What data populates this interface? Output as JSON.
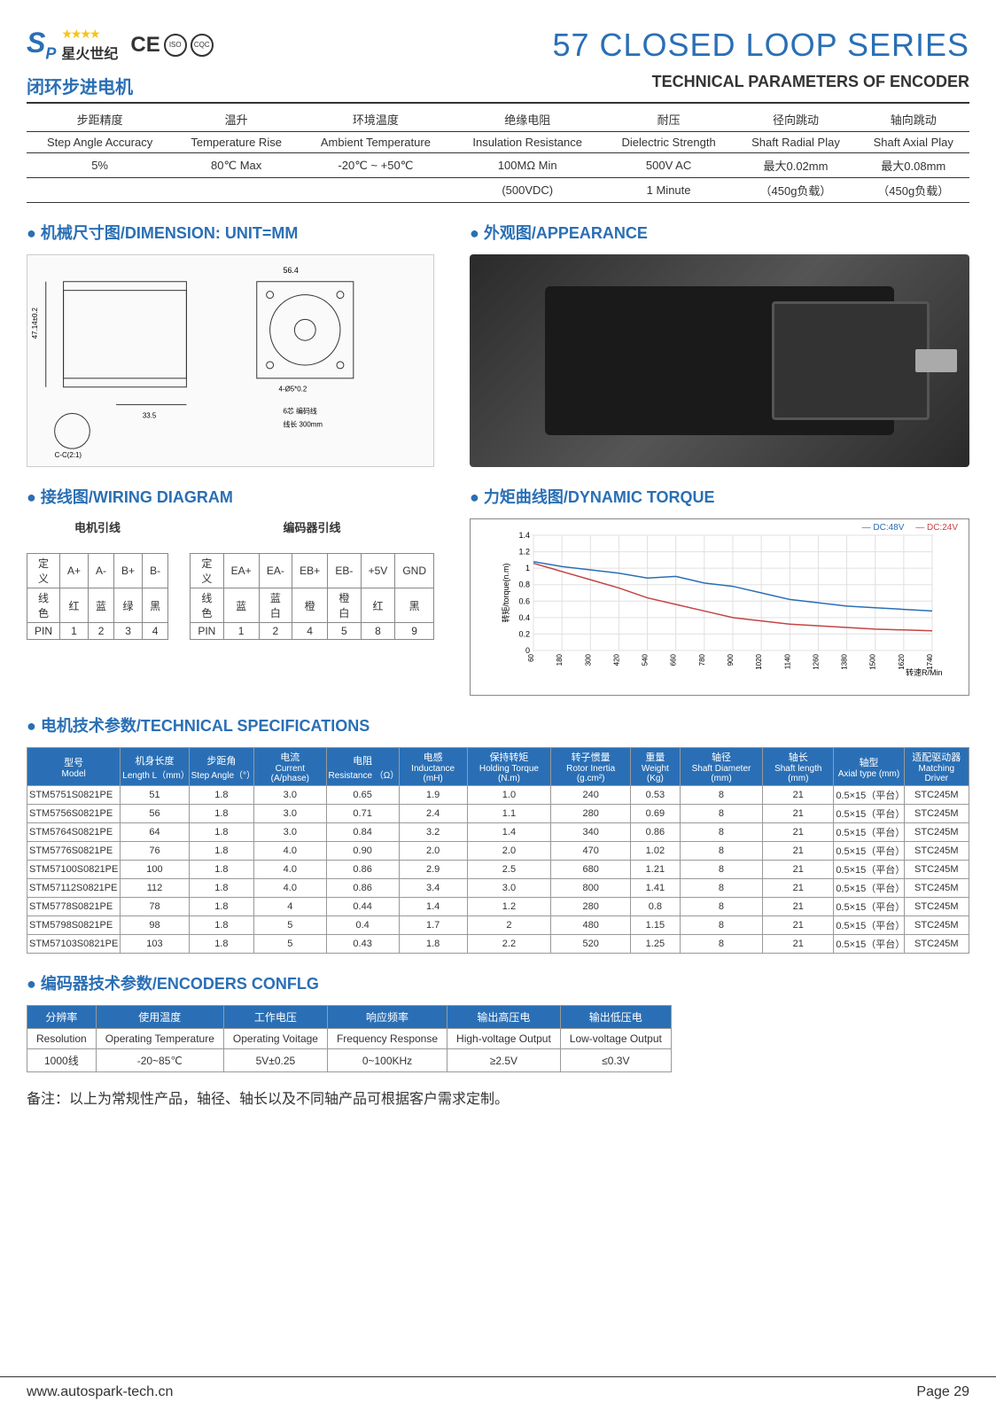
{
  "header": {
    "logo_sp": "S",
    "logo_p": "P",
    "logo_cn": "星火世纪",
    "main_title": "57 CLOSED LOOP SERIES"
  },
  "subheader": {
    "cn": "闭环步进电机",
    "en": "TECHNICAL PARAMETERS OF ENCODER"
  },
  "params": {
    "cols_cn": [
      "步距精度",
      "温升",
      "环境温度",
      "绝缘电阻",
      "耐压",
      "径向跳动",
      "轴向跳动"
    ],
    "cols_en": [
      "Step Angle Accuracy",
      "Temperature Rise",
      "Ambient Temperature",
      "Insulation Resistance",
      "Dielectric Strength",
      "Shaft Radial Play",
      "Shaft Axial Play"
    ],
    "row1": [
      "5%",
      "80℃ Max",
      "-20℃ ~ +50℃",
      "100MΩ Min",
      "500V AC",
      "最大0.02mm",
      "最大0.08mm"
    ],
    "row2": [
      "",
      "",
      "",
      "(500VDC)",
      "1 Minute",
      "（450g负载）",
      "（450g负载）"
    ]
  },
  "sections": {
    "dimension": "机械尺寸图/DIMENSION: UNIT=MM",
    "appearance": "外观图/APPEARANCE",
    "wiring": "接线图/WIRING DIAGRAM",
    "torque": "力矩曲线图/DYNAMIC TORQUE",
    "tech": "电机技术参数/TECHNICAL SPECIFICATIONS",
    "encoder": "编码器技术参数/ENCODERS CONFLG"
  },
  "wiring": {
    "motor_label": "电机引线",
    "encoder_label": "编码器引线",
    "motor_table": {
      "r0": [
        "定义",
        "A+",
        "A-",
        "B+",
        "B-"
      ],
      "r1": [
        "线色",
        "红",
        "蓝",
        "绿",
        "黑"
      ],
      "r2": [
        "PIN",
        "1",
        "2",
        "3",
        "4"
      ]
    },
    "encoder_table": {
      "r0": [
        "定义",
        "EA+",
        "EA-",
        "EB+",
        "EB-",
        "+5V",
        "GND"
      ],
      "r1": [
        "线色",
        "蓝",
        "蓝白",
        "橙",
        "橙白",
        "红",
        "黑"
      ],
      "r2": [
        "PIN",
        "1",
        "2",
        "4",
        "5",
        "8",
        "9"
      ]
    }
  },
  "torque_chart": {
    "legend": {
      "blue": "— DC:48V",
      "red": "— DC:24V"
    },
    "ylim": [
      0,
      1.4
    ],
    "yticks": [
      0,
      0.2,
      0.4,
      0.6,
      0.8,
      1.0,
      1.2,
      1.4
    ],
    "xticks": [
      60,
      180,
      300,
      420,
      540,
      660,
      780,
      900,
      1020,
      1140,
      1260,
      1380,
      1500,
      1620,
      1740
    ],
    "xlabel": "转速R/Min",
    "ylabel": "转矩/torque(n.m)",
    "series_blue": [
      [
        60,
        1.08
      ],
      [
        180,
        1.02
      ],
      [
        300,
        0.98
      ],
      [
        420,
        0.94
      ],
      [
        540,
        0.88
      ],
      [
        660,
        0.9
      ],
      [
        780,
        0.82
      ],
      [
        900,
        0.78
      ],
      [
        1020,
        0.7
      ],
      [
        1140,
        0.62
      ],
      [
        1260,
        0.58
      ],
      [
        1380,
        0.54
      ],
      [
        1500,
        0.52
      ],
      [
        1620,
        0.5
      ],
      [
        1740,
        0.48
      ]
    ],
    "series_red": [
      [
        60,
        1.06
      ],
      [
        180,
        0.96
      ],
      [
        300,
        0.86
      ],
      [
        420,
        0.76
      ],
      [
        540,
        0.64
      ],
      [
        660,
        0.56
      ],
      [
        780,
        0.48
      ],
      [
        900,
        0.4
      ],
      [
        1020,
        0.36
      ],
      [
        1140,
        0.32
      ],
      [
        1260,
        0.3
      ],
      [
        1380,
        0.28
      ],
      [
        1500,
        0.26
      ],
      [
        1620,
        0.25
      ],
      [
        1740,
        0.24
      ]
    ],
    "colors": {
      "blue": "#2a6fb5",
      "red": "#c44444",
      "grid": "#e0e0e0",
      "bg": "#ffffff"
    }
  },
  "specs": {
    "head_cn": [
      "型号",
      "机身长度",
      "步距角",
      "电流",
      "电阻",
      "电感",
      "保持转矩",
      "转子惯量",
      "重量",
      "轴径",
      "轴长",
      "轴型",
      "适配驱动器"
    ],
    "head_en": [
      "Model",
      "Length L（mm）",
      "Step Angle（°）",
      "Current (A/phase)",
      "Resistance （Ω）",
      "Inductance (mH)",
      "Holding Torque (N.m)",
      "Rotor Inertia (g.cm²)",
      "Weight (Kg)",
      "Shaft Diameter (mm)",
      "Shaft length (mm)",
      "Axial type (mm)",
      "Matching Driver"
    ],
    "rows": [
      [
        "STM5751S0821PE",
        "51",
        "1.8",
        "3.0",
        "0.65",
        "1.9",
        "1.0",
        "240",
        "0.53",
        "8",
        "21",
        "0.5×15（平台）",
        "STC245M"
      ],
      [
        "STM5756S0821PE",
        "56",
        "1.8",
        "3.0",
        "0.71",
        "2.4",
        "1.1",
        "280",
        "0.69",
        "8",
        "21",
        "0.5×15（平台）",
        "STC245M"
      ],
      [
        "STM5764S0821PE",
        "64",
        "1.8",
        "3.0",
        "0.84",
        "3.2",
        "1.4",
        "340",
        "0.86",
        "8",
        "21",
        "0.5×15（平台）",
        "STC245M"
      ],
      [
        "STM5776S0821PE",
        "76",
        "1.8",
        "4.0",
        "0.90",
        "2.0",
        "2.0",
        "470",
        "1.02",
        "8",
        "21",
        "0.5×15（平台）",
        "STC245M"
      ],
      [
        "STM57100S0821PE",
        "100",
        "1.8",
        "4.0",
        "0.86",
        "2.9",
        "2.5",
        "680",
        "1.21",
        "8",
        "21",
        "0.5×15（平台）",
        "STC245M"
      ],
      [
        "STM57112S0821PE",
        "112",
        "1.8",
        "4.0",
        "0.86",
        "3.4",
        "3.0",
        "800",
        "1.41",
        "8",
        "21",
        "0.5×15（平台）",
        "STC245M"
      ],
      [
        "STM5778S0821PE",
        "78",
        "1.8",
        "4",
        "0.44",
        "1.4",
        "1.2",
        "280",
        "0.8",
        "8",
        "21",
        "0.5×15（平台）",
        "STC245M"
      ],
      [
        "STM5798S0821PE",
        "98",
        "1.8",
        "5",
        "0.4",
        "1.7",
        "2",
        "480",
        "1.15",
        "8",
        "21",
        "0.5×15（平台）",
        "STC245M"
      ],
      [
        "STM57103S0821PE",
        "103",
        "1.8",
        "5",
        "0.43",
        "1.8",
        "2.2",
        "520",
        "1.25",
        "8",
        "21",
        "0.5×15（平台）",
        "STC245M"
      ]
    ]
  },
  "encoder": {
    "head_cn": [
      "分辨率",
      "使用温度",
      "工作电压",
      "响应频率",
      "输出高压电",
      "输出低压电"
    ],
    "head_en": [
      "Resolution",
      "Operating Temperature",
      "Operating Voitage",
      "Frequency Response",
      "High-voltage Output",
      "Low-voltage Output"
    ],
    "row": [
      "1000线",
      "-20~85℃",
      "5V±0.25",
      "0~100KHz",
      "≥2.5V",
      "≤0.3V"
    ]
  },
  "note": "备注：以上为常规性产品，轴径、轴长以及不同轴产品可根据客户需求定制。",
  "footer": {
    "url": "www.autospark-tech.cn",
    "page": "Page  29"
  }
}
